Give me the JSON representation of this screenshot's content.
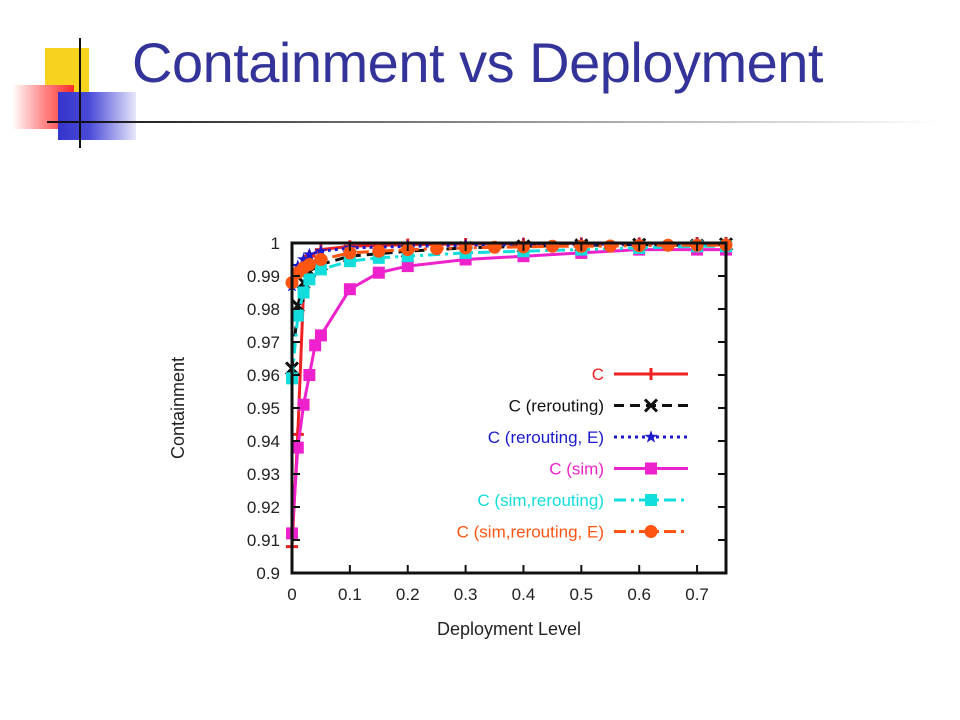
{
  "slide": {
    "title": "Containment vs Deployment"
  },
  "chart_data": {
    "type": "line",
    "title": "",
    "xlabel": "Deployment Level",
    "ylabel": "Containment",
    "xlim": [
      0,
      0.75
    ],
    "ylim": [
      0.9,
      1.0
    ],
    "x_ticks": [
      0,
      0.1,
      0.2,
      0.3,
      0.4,
      0.5,
      0.6,
      0.7
    ],
    "x_tick_labels": [
      "0",
      "0.1",
      "0.2",
      "0.3",
      "0.4",
      "0.5",
      "0.6",
      "0.7"
    ],
    "y_ticks": [
      0.9,
      0.91,
      0.92,
      0.93,
      0.94,
      0.95,
      0.96,
      0.97,
      0.98,
      0.99,
      1.0
    ],
    "y_tick_labels": [
      "0.9",
      "0.91",
      "0.92",
      "0.93",
      "0.94",
      "0.95",
      "0.96",
      "0.97",
      "0.98",
      "0.99",
      "1"
    ],
    "grid": false,
    "legend_position": "center-right",
    "series": [
      {
        "name": "C",
        "color": "#ee2222",
        "dash": "solid",
        "marker": "plus",
        "x": [
          0,
          0.01,
          0.02,
          0.03,
          0.05,
          0.1,
          0.2,
          0.3,
          0.4,
          0.5,
          0.6,
          0.7,
          0.75
        ],
        "y": [
          0.908,
          0.942,
          0.986,
          0.996,
          0.998,
          0.999,
          0.9995,
          0.9997,
          0.9998,
          0.9999,
          0.9999,
          1.0,
          1.0
        ]
      },
      {
        "name": "C (rerouting)",
        "color": "#111111",
        "dash": "dashed",
        "marker": "x",
        "x": [
          0,
          0.01,
          0.02,
          0.03,
          0.05,
          0.1,
          0.2,
          0.3,
          0.4,
          0.5,
          0.6,
          0.7,
          0.75
        ],
        "y": [
          0.962,
          0.981,
          0.988,
          0.9915,
          0.9935,
          0.996,
          0.9975,
          0.9985,
          0.999,
          0.9993,
          0.9995,
          0.9992,
          0.9996
        ]
      },
      {
        "name": "C (rerouting, E)",
        "color": "#1a1acc",
        "dash": "dotted",
        "marker": "star",
        "x": [
          0,
          0.01,
          0.02,
          0.03,
          0.05,
          0.1,
          0.2,
          0.3,
          0.4,
          0.5,
          0.6,
          0.7,
          0.75
        ],
        "y": [
          0.987,
          0.993,
          0.995,
          0.9965,
          0.9975,
          0.9985,
          0.999,
          0.9993,
          0.9995,
          0.9996,
          0.9997,
          0.9998,
          0.9998
        ]
      },
      {
        "name": "C (sim)",
        "color": "#ee22cc",
        "dash": "solid",
        "marker": "square",
        "x": [
          0,
          0.01,
          0.02,
          0.03,
          0.04,
          0.05,
          0.1,
          0.15,
          0.2,
          0.3,
          0.4,
          0.5,
          0.6,
          0.7,
          0.75
        ],
        "y": [
          0.912,
          0.938,
          0.951,
          0.96,
          0.969,
          0.972,
          0.986,
          0.991,
          0.993,
          0.995,
          0.996,
          0.997,
          0.998,
          0.998,
          0.998
        ]
      },
      {
        "name": "C (sim,rerouting)",
        "color": "#11dddd",
        "dash": "dashdot",
        "marker": "square",
        "x": [
          0,
          0.01,
          0.02,
          0.03,
          0.05,
          0.1,
          0.15,
          0.2,
          0.3,
          0.4,
          0.5,
          0.6,
          0.7,
          0.75
        ],
        "y": [
          0.959,
          0.978,
          0.985,
          0.989,
          0.992,
          0.9945,
          0.9955,
          0.996,
          0.997,
          0.9975,
          0.998,
          0.9985,
          0.999,
          0.999
        ]
      },
      {
        "name": "C (sim,rerouting, E)",
        "color": "#ff5511",
        "dash": "dashdot",
        "marker": "circle",
        "x": [
          0,
          0.01,
          0.02,
          0.03,
          0.05,
          0.1,
          0.15,
          0.2,
          0.25,
          0.3,
          0.35,
          0.4,
          0.45,
          0.5,
          0.55,
          0.6,
          0.65,
          0.7,
          0.75
        ],
        "y": [
          0.988,
          0.991,
          0.9925,
          0.9935,
          0.995,
          0.997,
          0.9975,
          0.998,
          0.9983,
          0.9985,
          0.9987,
          0.9988,
          0.999,
          0.999,
          0.9991,
          0.9992,
          0.9993,
          0.9993,
          0.9994
        ]
      }
    ]
  }
}
